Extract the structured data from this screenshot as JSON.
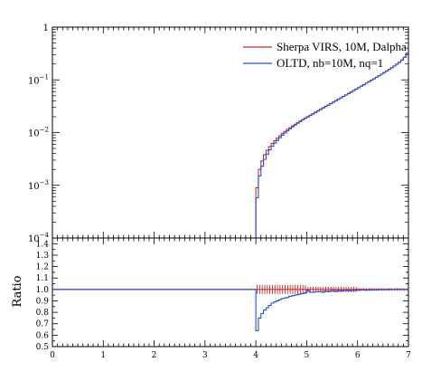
{
  "colors": {
    "sherpa": "#d62728",
    "oltd": "#1f4fe0",
    "axis": "#000000"
  },
  "chart_data": [
    {
      "type": "line",
      "panel": "main",
      "yscale": "log",
      "xlim": [
        0,
        7
      ],
      "ylim": [
        0.0001,
        1
      ],
      "yticks": [
        {
          "v": 1,
          "m": "1",
          "e": ""
        },
        {
          "v": 0.1,
          "m": "10",
          "e": "−1"
        },
        {
          "v": 0.01,
          "m": "10",
          "e": "−2"
        },
        {
          "v": 0.001,
          "m": "10",
          "e": "−3"
        },
        {
          "v": 0.0001,
          "m": "10",
          "e": "−4"
        }
      ],
      "legend_position": "top-right",
      "series": [
        {
          "name": "Sherpa VIRS, 10M, Dalpha",
          "color": "#d62728",
          "x": [
            4.0,
            4.05,
            4.1,
            4.15,
            4.2,
            4.25,
            4.3,
            4.35,
            4.4,
            4.45,
            4.5,
            4.55,
            4.6,
            4.65,
            4.7,
            4.75,
            4.8,
            4.85,
            4.9,
            4.95,
            5.0,
            5.05,
            5.1,
            5.15,
            5.2,
            5.25,
            5.3,
            5.35,
            5.4,
            5.45,
            5.5,
            5.55,
            5.6,
            5.65,
            5.7,
            5.75,
            5.8,
            5.85,
            5.9,
            5.95,
            6.0,
            6.05,
            6.1,
            6.15,
            6.2,
            6.25,
            6.3,
            6.35,
            6.4,
            6.45,
            6.5,
            6.55,
            6.6,
            6.65,
            6.7,
            6.75,
            6.8,
            6.85,
            6.9,
            6.95,
            7.0
          ],
          "values": [
            0.0009,
            0.002,
            0.0029,
            0.0038,
            0.0046,
            0.0054,
            0.0062,
            0.007,
            0.0078,
            0.0087,
            0.0096,
            0.0105,
            0.0115,
            0.0124,
            0.0134,
            0.0144,
            0.0155,
            0.0166,
            0.0177,
            0.0189,
            0.0201,
            0.0215,
            0.0229,
            0.0244,
            0.026,
            0.0277,
            0.0295,
            0.0314,
            0.0334,
            0.0356,
            0.0379,
            0.0404,
            0.043,
            0.0458,
            0.0488,
            0.052,
            0.0554,
            0.059,
            0.0629,
            0.067,
            0.0714,
            0.0762,
            0.0812,
            0.0866,
            0.0924,
            0.0986,
            0.1052,
            0.1124,
            0.1201,
            0.1285,
            0.1376,
            0.1475,
            0.1583,
            0.1702,
            0.1834,
            0.1984,
            0.216,
            0.238,
            0.27,
            0.32,
            0.32
          ]
        },
        {
          "name": "OLTD, nb=10M, nq=1",
          "color": "#1f4fe0",
          "x": [
            4.0,
            4.05,
            4.1,
            4.15,
            4.2,
            4.25,
            4.3,
            4.35,
            4.4,
            4.45,
            4.5,
            4.55,
            4.6,
            4.65,
            4.7,
            4.75,
            4.8,
            4.85,
            4.9,
            4.95,
            5.0,
            5.05,
            5.1,
            5.15,
            5.2,
            5.25,
            5.3,
            5.35,
            5.4,
            5.45,
            5.5,
            5.55,
            5.6,
            5.65,
            5.7,
            5.75,
            5.8,
            5.85,
            5.9,
            5.95,
            6.0,
            6.05,
            6.1,
            6.15,
            6.2,
            6.25,
            6.3,
            6.35,
            6.4,
            6.45,
            6.5,
            6.55,
            6.6,
            6.65,
            6.7,
            6.75,
            6.8,
            6.85,
            6.9,
            6.95,
            7.0
          ],
          "values": [
            0.00058,
            0.0015,
            0.0023,
            0.0031,
            0.0039,
            0.0047,
            0.0055,
            0.0063,
            0.0071,
            0.008,
            0.0089,
            0.0098,
            0.0108,
            0.0118,
            0.0129,
            0.0139,
            0.015,
            0.0162,
            0.0174,
            0.0186,
            0.0198,
            0.0211,
            0.0225,
            0.024,
            0.0256,
            0.0273,
            0.0291,
            0.031,
            0.033,
            0.0352,
            0.0375,
            0.04,
            0.0426,
            0.0454,
            0.0484,
            0.0516,
            0.055,
            0.0586,
            0.0625,
            0.0666,
            0.071,
            0.0758,
            0.0808,
            0.0862,
            0.092,
            0.0982,
            0.1048,
            0.112,
            0.1197,
            0.1281,
            0.1372,
            0.1471,
            0.1579,
            0.1698,
            0.183,
            0.198,
            0.2155,
            0.237,
            0.268,
            0.315,
            0.315
          ]
        }
      ]
    },
    {
      "type": "line",
      "panel": "ratio",
      "ylabel": "Ratio",
      "xlim": [
        0,
        7
      ],
      "ylim": [
        0.5,
        1.45
      ],
      "xticks": [
        "0",
        "1",
        "2",
        "3",
        "4",
        "5",
        "6",
        "7"
      ],
      "yticks": [
        "1.4",
        "1.3",
        "1.2",
        "1.1",
        "1.0",
        "0.9",
        "0.8",
        "0.7",
        "0.6",
        "0.5"
      ],
      "series": [
        {
          "name": "Sherpa VIRS, 10M, Dalpha",
          "color": "#d62728",
          "x": [
            0,
            4.0,
            7.0
          ],
          "values": [
            1.0,
            1.0,
            1.0
          ]
        },
        {
          "name": "OLTD, nb=10M, nq=1",
          "color": "#1f4fe0",
          "x": [
            0,
            3.98,
            4.0,
            4.05,
            4.1,
            4.15,
            4.2,
            4.25,
            4.3,
            4.35,
            4.4,
            4.45,
            4.5,
            4.55,
            4.6,
            4.65,
            4.7,
            4.75,
            4.8,
            4.85,
            4.9,
            4.95,
            5.0,
            5.05,
            5.1,
            5.15,
            5.2,
            5.25,
            5.3,
            5.35,
            5.4,
            5.45,
            5.5,
            5.55,
            5.6,
            5.65,
            5.7,
            5.75,
            5.8,
            5.85,
            5.9,
            5.95,
            6.0,
            6.05,
            6.1,
            6.15,
            6.2,
            6.25,
            6.3,
            6.35,
            6.4,
            6.45,
            6.5,
            6.55,
            6.6,
            6.65,
            6.7,
            6.75,
            6.8,
            6.85,
            6.9,
            6.95
          ],
          "values": [
            1.0,
            1.0,
            0.64,
            0.75,
            0.79,
            0.82,
            0.84,
            0.86,
            0.88,
            0.89,
            0.9,
            0.91,
            0.92,
            0.925,
            0.93,
            0.94,
            0.945,
            0.95,
            0.955,
            0.96,
            0.965,
            0.97,
            0.99,
            0.975,
            0.975,
            0.978,
            0.98,
            0.982,
            0.975,
            0.985,
            0.98,
            0.985,
            0.988,
            0.982,
            0.99,
            0.985,
            0.99,
            0.99,
            0.988,
            0.992,
            0.99,
            0.995,
            0.993,
            0.995,
            0.996,
            0.993,
            0.997,
            0.995,
            0.998,
            0.996,
            1.0,
            0.997,
            1.0,
            0.998,
            1.002,
            1.0,
            1.0,
            1.003,
            1.0,
            1.002,
            1.0,
            1.0
          ]
        }
      ]
    }
  ]
}
